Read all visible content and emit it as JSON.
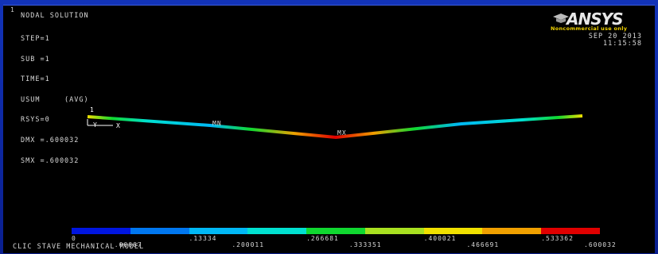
{
  "window_number": "1",
  "title": "NODAL SOLUTION",
  "info_lines": [
    "STEP=1",
    "SUB =1",
    "TIME=1",
    "USUM     (AVG)",
    "RSYS=0",
    "DMX =.600032",
    "SMX =.600032"
  ],
  "logo": {
    "text": "ANSYS",
    "subtext": "Noncommercial use only"
  },
  "date": "SEP 20 2013",
  "time": "11:15:58",
  "markers": {
    "min": "MN",
    "max": "MX",
    "node_triangle": "1",
    "axis_y": "Y",
    "axis_x": "X"
  },
  "contour_legend": {
    "colors": [
      "#0015e0",
      "#0077f0",
      "#00b8f5",
      "#00e0d0",
      "#10d830",
      "#a8e020",
      "#f0e000",
      "#f0a000",
      "#e00000"
    ],
    "ticks_top": [
      "0",
      ".13334",
      ".266681",
      ".400021",
      ".533362"
    ],
    "ticks_bottom": [
      ".06667",
      ".200011",
      ".333351",
      ".466691",
      ".600032"
    ]
  },
  "footer": "CLIC STAVE MECHANICAL MODEL"
}
